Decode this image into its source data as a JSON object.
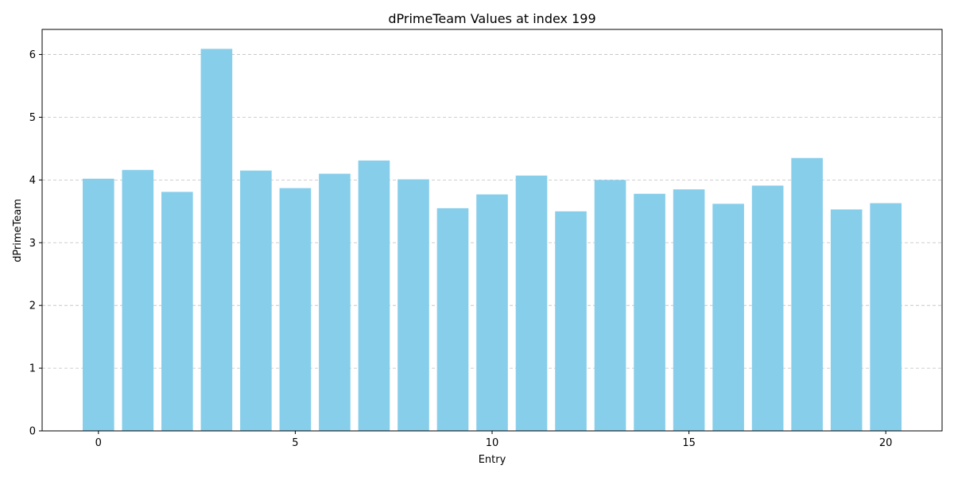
{
  "chart_data": {
    "type": "bar",
    "title": "dPrimeTeam Values at index 199",
    "xlabel": "Entry",
    "ylabel": "dPrimeTeam",
    "x": [
      0,
      1,
      2,
      3,
      4,
      5,
      6,
      7,
      8,
      9,
      10,
      11,
      12,
      13,
      14,
      15,
      16,
      17,
      18,
      19,
      20
    ],
    "values": [
      4.02,
      4.16,
      3.81,
      6.09,
      4.15,
      3.87,
      4.1,
      4.31,
      4.01,
      3.55,
      3.77,
      4.07,
      3.5,
      4.0,
      3.78,
      3.85,
      3.62,
      3.91,
      4.35,
      3.53,
      3.63
    ],
    "xlim": [
      -1.43,
      21.43
    ],
    "ylim": [
      0,
      6.4
    ],
    "xticks": [
      0,
      5,
      10,
      15,
      20
    ],
    "yticks": [
      0,
      1,
      2,
      3,
      4,
      5,
      6
    ],
    "grid": "y-dashed",
    "bar_color": "#87CEEB"
  }
}
